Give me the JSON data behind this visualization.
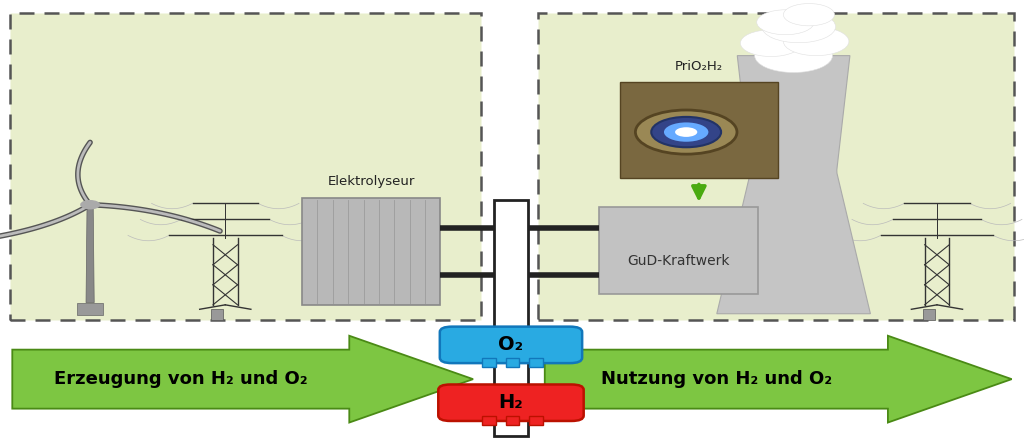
{
  "bg_color": "#ffffff",
  "left_box_color": "#e8eecc",
  "right_box_color": "#e8eecc",
  "dashed_border_color": "#555555",
  "arrow_color": "#7dc642",
  "arrow_text_left": "Erzeugung von H₂ und O₂",
  "arrow_text_right": "Nutzung von H₂ und O₂",
  "o2_color": "#29aae2",
  "h2_color": "#ee2222",
  "o2_label": "O₂",
  "h2_label": "H₂",
  "elektrolyseur_label": "Elektrolyseur",
  "gud_label": "GuD-Kraftwerk",
  "prio2h2_label": "PriO₂H₂"
}
